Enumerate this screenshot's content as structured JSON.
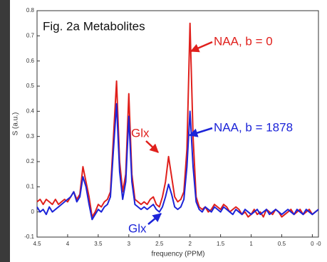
{
  "chart_data": {
    "type": "line",
    "title": "Fig. 2a Metabolites",
    "x_label": "frequency (PPM)",
    "y_label": "S (a.u.)",
    "x": [
      4.5,
      4.45,
      4.4,
      4.35,
      4.3,
      4.25,
      4.2,
      4.15,
      4.1,
      4.05,
      4.0,
      3.95,
      3.9,
      3.85,
      3.8,
      3.75,
      3.7,
      3.65,
      3.6,
      3.55,
      3.5,
      3.45,
      3.4,
      3.35,
      3.3,
      3.25,
      3.2,
      3.15,
      3.1,
      3.05,
      3.0,
      2.95,
      2.9,
      2.85,
      2.8,
      2.75,
      2.7,
      2.65,
      2.6,
      2.55,
      2.5,
      2.45,
      2.4,
      2.35,
      2.3,
      2.25,
      2.2,
      2.15,
      2.1,
      2.05,
      2.0,
      1.95,
      1.9,
      1.85,
      1.8,
      1.75,
      1.7,
      1.65,
      1.6,
      1.55,
      1.5,
      1.45,
      1.4,
      1.35,
      1.3,
      1.25,
      1.2,
      1.15,
      1.1,
      1.05,
      1.0,
      0.95,
      0.9,
      0.85,
      0.8,
      0.75,
      0.7,
      0.65,
      0.6,
      0.55,
      0.5,
      0.45,
      0.4,
      0.35,
      0.3,
      0.25,
      0.2,
      0.15,
      0.1,
      0.05,
      0.0,
      -0.05,
      -0.1
    ],
    "series": [
      {
        "color": "#e0201c",
        "values": [
          0.04,
          0.05,
          0.03,
          0.05,
          0.04,
          0.03,
          0.05,
          0.03,
          0.04,
          0.05,
          0.04,
          0.06,
          0.08,
          0.05,
          0.07,
          0.18,
          0.12,
          0.06,
          -0.02,
          0.0,
          0.03,
          0.02,
          0.04,
          0.05,
          0.08,
          0.3,
          0.52,
          0.2,
          0.08,
          0.15,
          0.47,
          0.15,
          0.05,
          0.04,
          0.03,
          0.04,
          0.03,
          0.05,
          0.06,
          0.03,
          0.02,
          0.06,
          0.12,
          0.22,
          0.14,
          0.06,
          0.04,
          0.05,
          0.08,
          0.25,
          0.75,
          0.3,
          0.06,
          0.02,
          0.01,
          0.02,
          0.0,
          0.01,
          0.03,
          0.02,
          0.01,
          0.03,
          0.02,
          0.0,
          0.01,
          0.02,
          0.01,
          -0.01,
          0.0,
          -0.02,
          -0.01,
          0.01,
          -0.01,
          0.0,
          -0.02,
          0.01,
          0.0,
          -0.01,
          0.01,
          0.0,
          -0.02,
          -0.01,
          0.0,
          0.01,
          -0.01,
          0.0,
          0.01,
          -0.01,
          0.0,
          0.01,
          -0.01,
          0.0,
          0.01
        ]
      },
      {
        "color": "#1c24d8",
        "values": [
          0.02,
          0.0,
          0.01,
          -0.01,
          0.02,
          0.0,
          0.01,
          0.02,
          0.03,
          0.04,
          0.05,
          0.06,
          0.08,
          0.04,
          0.06,
          0.14,
          0.1,
          0.03,
          -0.03,
          -0.01,
          0.01,
          0.0,
          0.02,
          0.03,
          0.06,
          0.25,
          0.43,
          0.16,
          0.05,
          0.12,
          0.38,
          0.12,
          0.03,
          0.02,
          0.01,
          0.02,
          0.01,
          0.02,
          0.03,
          0.01,
          0.0,
          0.02,
          0.06,
          0.11,
          0.07,
          0.02,
          0.01,
          0.02,
          0.05,
          0.18,
          0.4,
          0.18,
          0.04,
          0.01,
          0.0,
          0.02,
          0.01,
          0.0,
          0.02,
          0.01,
          0.0,
          0.02,
          0.01,
          0.0,
          -0.01,
          0.01,
          0.0,
          -0.01,
          0.01,
          0.0,
          -0.01,
          0.0,
          0.01,
          -0.01,
          0.0,
          0.01,
          -0.01,
          0.0,
          0.01,
          0.0,
          -0.01,
          0.0,
          0.01,
          0.0,
          -0.01,
          0.01,
          0.0,
          -0.01,
          0.01,
          0.0,
          -0.01,
          0.0,
          0.01
        ]
      }
    ],
    "xlim": [
      4.5,
      -0.1
    ],
    "ylim": [
      -0.1,
      0.8
    ],
    "xticks": [
      4.5,
      4,
      3.5,
      3,
      2.5,
      2,
      1.5,
      1,
      0.5,
      0,
      {
        "value": -0.1,
        "label": "-0"
      }
    ],
    "yticks": [
      -0.1,
      0,
      0.1,
      0.2,
      0.3,
      0.4,
      0.5,
      0.6,
      0.7,
      0.8
    ],
    "annotations": [
      {
        "text": "NAA, b = 0",
        "color": "#e0201c"
      },
      {
        "text": "NAA, b = 1878",
        "color": "#1c24d8"
      },
      {
        "text": "Glx",
        "color": "#e0201c"
      },
      {
        "text": "Glx",
        "color": "#1c24d8"
      }
    ]
  }
}
